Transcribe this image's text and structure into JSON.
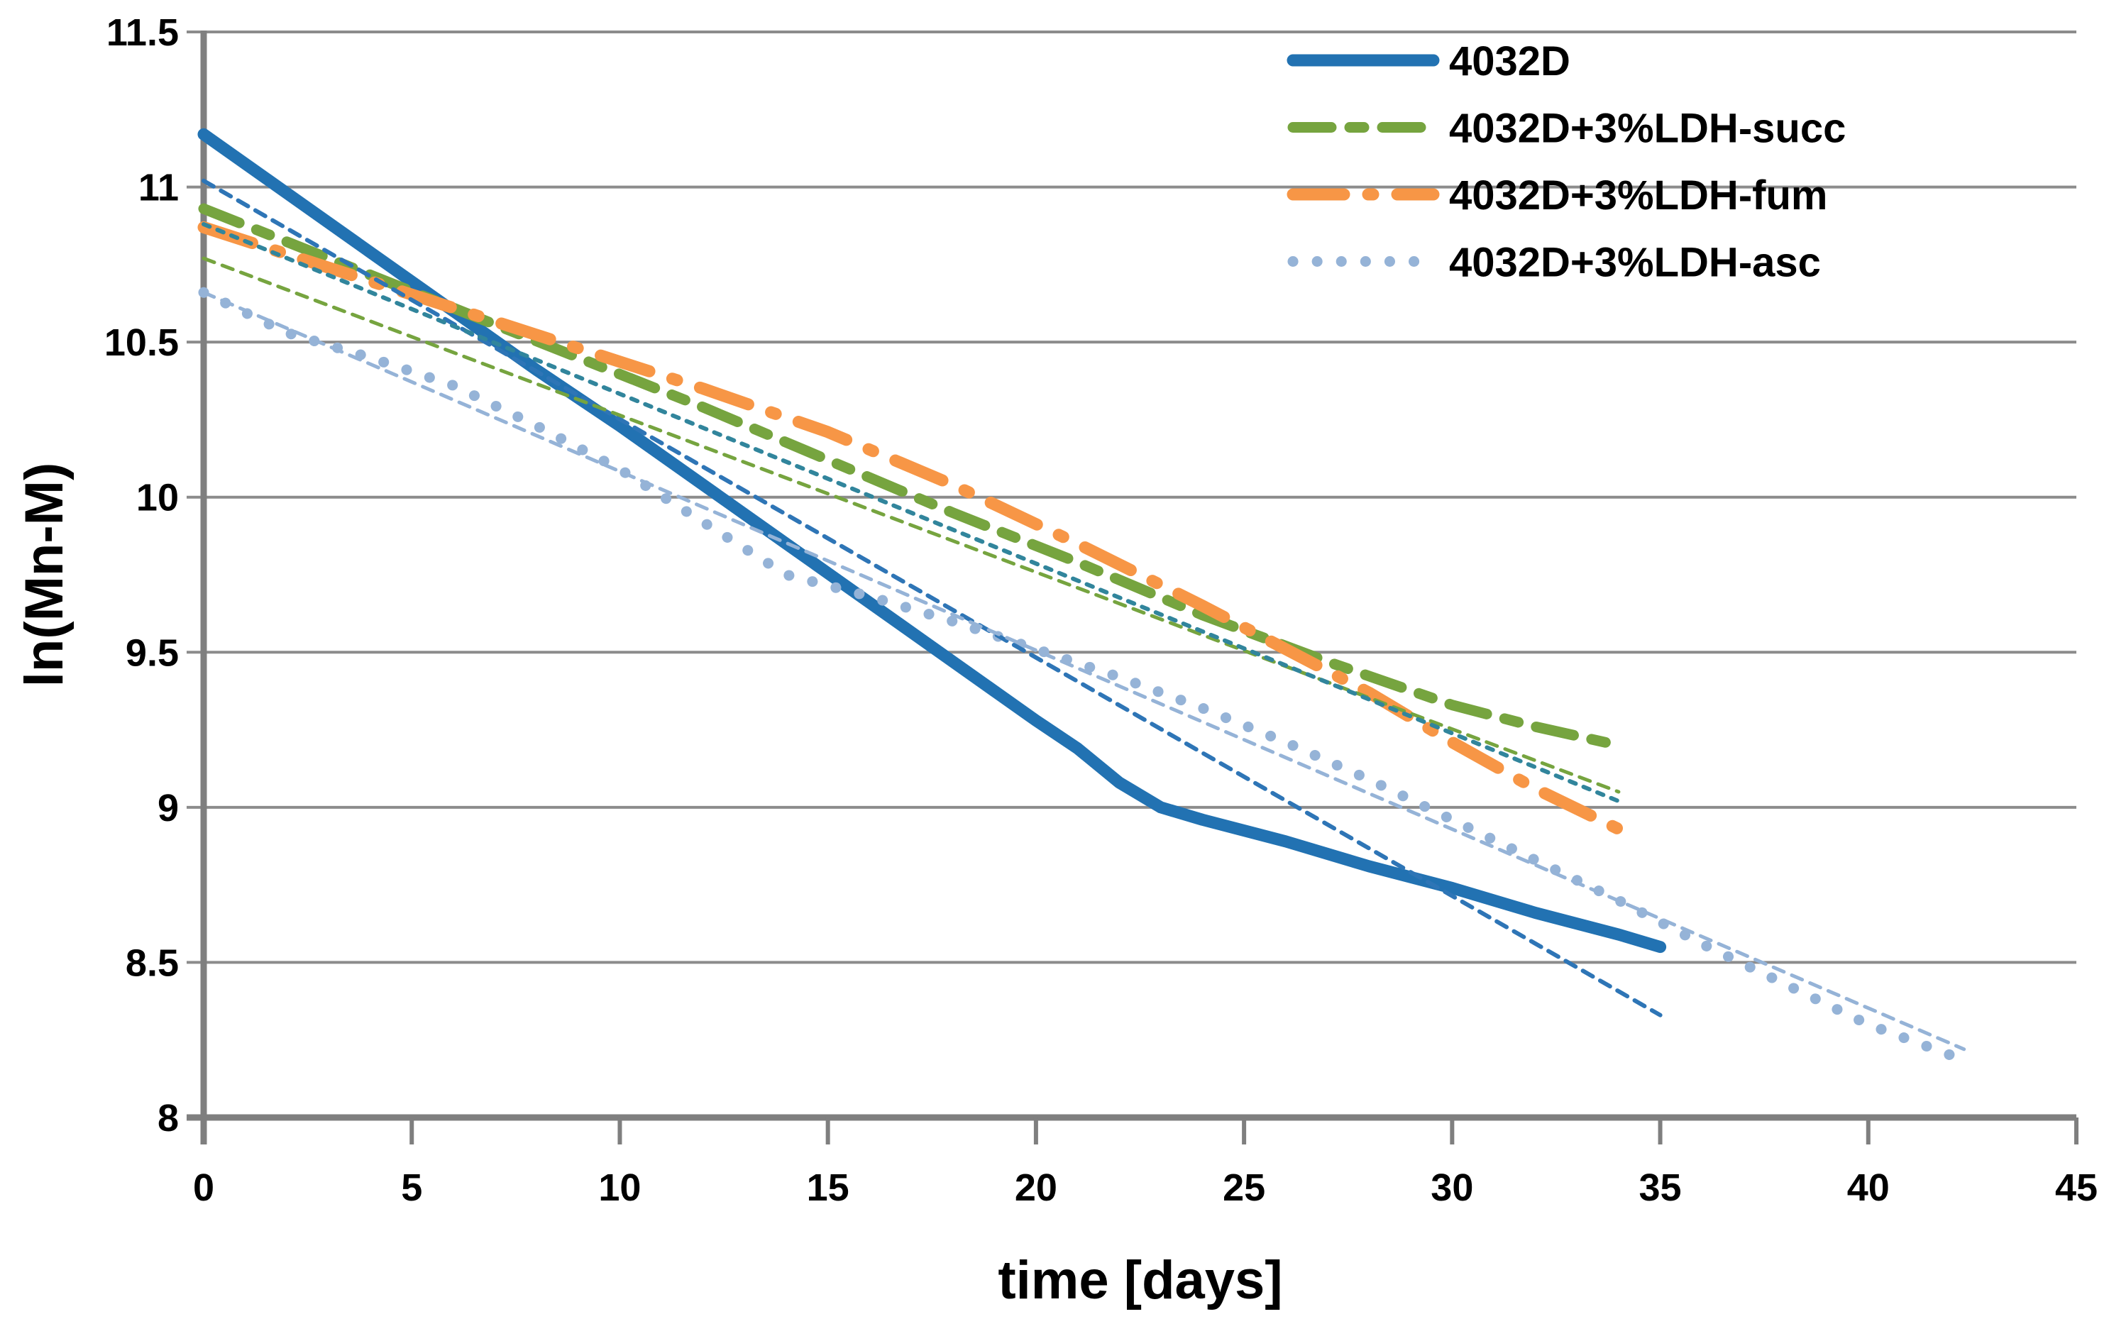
{
  "chart_data": {
    "type": "line",
    "xlabel": "time [days]",
    "ylabel": "ln(Mn-M)",
    "x_axis": {
      "min": 0,
      "max": 45,
      "tick_step": 5,
      "ticks": [
        0,
        5,
        10,
        15,
        20,
        25,
        30,
        35,
        40,
        45
      ]
    },
    "y_axis": {
      "min": 8,
      "max": 11.5,
      "tick_step": 0.5,
      "ticks": [
        8,
        8.5,
        9,
        9.5,
        10,
        10.5,
        11,
        11.5
      ]
    },
    "grid": "horizontal",
    "legend_position": "top-right",
    "colors": {
      "blue": "#2272B2",
      "green": "#76A43F",
      "orange": "#F79646",
      "light_blue": "#95B3D7",
      "teal": "#31859C",
      "gridline": "#8C8C8C",
      "axis": "#7F7F7F",
      "text": "#000000",
      "background": "#FFFFFF"
    },
    "series": [
      {
        "key": "4032d",
        "name": "4032D",
        "legend": true,
        "color": "#2272B2",
        "style": "solid",
        "width": 17,
        "points": [
          [
            0,
            11.17
          ],
          [
            2,
            10.98
          ],
          [
            4,
            10.79
          ],
          [
            6,
            10.6
          ],
          [
            8,
            10.41
          ],
          [
            10,
            10.23
          ],
          [
            12,
            10.04
          ],
          [
            14,
            9.85
          ],
          [
            16,
            9.66
          ],
          [
            18,
            9.47
          ],
          [
            20,
            9.28
          ],
          [
            21,
            9.19
          ],
          [
            22,
            9.08
          ],
          [
            23,
            9.0
          ],
          [
            24,
            8.96
          ],
          [
            26,
            8.89
          ],
          [
            28,
            8.81
          ],
          [
            30,
            8.74
          ],
          [
            32,
            8.66
          ],
          [
            34,
            8.59
          ],
          [
            35,
            8.55
          ]
        ]
      },
      {
        "key": "4032d-succ",
        "name": "4032D+3%LDH-succ",
        "legend": true,
        "color": "#76A43F",
        "style": "dash",
        "width": 15,
        "points": [
          [
            0,
            10.93
          ],
          [
            3,
            10.77
          ],
          [
            6,
            10.61
          ],
          [
            9,
            10.45
          ],
          [
            12,
            10.29
          ],
          [
            15,
            10.12
          ],
          [
            18,
            9.95
          ],
          [
            21,
            9.79
          ],
          [
            24,
            9.62
          ],
          [
            27,
            9.47
          ],
          [
            30,
            9.33
          ],
          [
            32,
            9.26
          ],
          [
            34,
            9.2
          ]
        ]
      },
      {
        "key": "4032d-fum",
        "name": "4032D+3%LDH-fum",
        "legend": true,
        "color": "#F79646",
        "style": "dash-dot",
        "width": 17,
        "points": [
          [
            0,
            10.87
          ],
          [
            3,
            10.74
          ],
          [
            6,
            10.61
          ],
          [
            9,
            10.48
          ],
          [
            12,
            10.35
          ],
          [
            15,
            10.21
          ],
          [
            18,
            10.04
          ],
          [
            21,
            9.85
          ],
          [
            24,
            9.65
          ],
          [
            26,
            9.51
          ],
          [
            28,
            9.37
          ],
          [
            30,
            9.21
          ],
          [
            32,
            9.06
          ],
          [
            34,
            8.93
          ]
        ]
      },
      {
        "key": "4032d-asc",
        "name": "4032D+3%LDH-asc",
        "legend": true,
        "color": "#95B3D7",
        "style": "dot",
        "width": 15,
        "points": [
          [
            0,
            10.66
          ],
          [
            2,
            10.53
          ],
          [
            4,
            10.45
          ],
          [
            6,
            10.36
          ],
          [
            8,
            10.23
          ],
          [
            10,
            10.09
          ],
          [
            12,
            9.92
          ],
          [
            14,
            9.75
          ],
          [
            16,
            9.68
          ],
          [
            18,
            9.6
          ],
          [
            20,
            9.51
          ],
          [
            22,
            9.42
          ],
          [
            24,
            9.32
          ],
          [
            26,
            9.21
          ],
          [
            28,
            9.09
          ],
          [
            30,
            8.96
          ],
          [
            32,
            8.83
          ],
          [
            34,
            8.7
          ],
          [
            36,
            8.56
          ],
          [
            38,
            8.43
          ],
          [
            40,
            8.3
          ],
          [
            42,
            8.2
          ]
        ]
      },
      {
        "key": "4032d-trend",
        "name": "4032D trendline",
        "legend": false,
        "color": "#2E75B6",
        "style": "fine-dash",
        "width": 6,
        "points": [
          [
            0,
            11.02
          ],
          [
            35,
            8.33
          ]
        ]
      },
      {
        "key": "succ-trend",
        "name": "4032D+3%LDH-succ trendline",
        "legend": false,
        "color": "#76A43F",
        "style": "fine-dash",
        "width": 5,
        "points": [
          [
            0,
            10.77
          ],
          [
            34,
            9.05
          ]
        ]
      },
      {
        "key": "fum-trend",
        "name": "4032D+3%LDH-fum trendline",
        "legend": false,
        "color": "#31859C",
        "style": "fine-dot",
        "width": 6,
        "points": [
          [
            0,
            10.88
          ],
          [
            34,
            9.02
          ]
        ]
      },
      {
        "key": "asc-trend",
        "name": "4032D+3%LDH-asc trendline",
        "legend": false,
        "color": "#95B3D7",
        "style": "fine-dash",
        "width": 5,
        "points": [
          [
            0,
            10.66
          ],
          [
            42.3,
            8.22
          ]
        ]
      }
    ]
  }
}
